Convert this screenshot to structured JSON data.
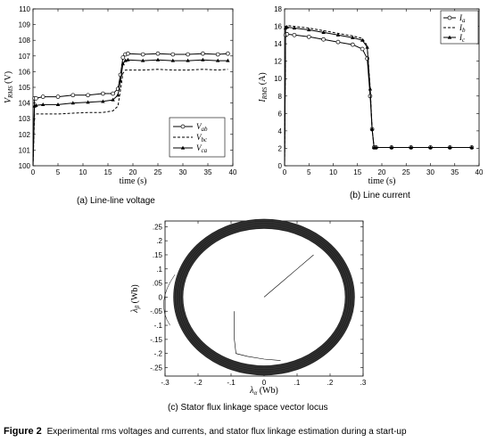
{
  "figure_caption": {
    "label": "Figure 2",
    "text": "Experimental rms voltages and currents, and stator flux linkage estimation during a start-up"
  },
  "chart_data": [
    {
      "id": "a",
      "type": "line",
      "caption": "(a) Line-line voltage",
      "xlabel": "time (s)",
      "ylabel": "V_RMS (V)",
      "xlim": [
        0,
        40
      ],
      "ylim": [
        100,
        110
      ],
      "xticks": [
        0,
        5,
        10,
        15,
        20,
        25,
        30,
        35,
        40
      ],
      "yticks": [
        100,
        101,
        102,
        103,
        104,
        105,
        106,
        107,
        108,
        109,
        110
      ],
      "grid": false,
      "legend_position": "bottom-right",
      "series": [
        {
          "name": "V_ab",
          "name_main": "V",
          "name_sub": "ab",
          "style": "circle-marker",
          "x": [
            0,
            0.3,
            0.6,
            2,
            5,
            8,
            11,
            14,
            16,
            17,
            17.5,
            18,
            18.5,
            19,
            22,
            25,
            28,
            31,
            34,
            37,
            39
          ],
          "y": [
            100,
            104.3,
            104.3,
            104.4,
            104.4,
            104.5,
            104.5,
            104.6,
            104.6,
            104.9,
            105.8,
            106.9,
            107.1,
            107.15,
            107.1,
            107.15,
            107.1,
            107.1,
            107.15,
            107.1,
            107.15
          ]
        },
        {
          "name": "V_bc",
          "name_main": "V",
          "name_sub": "bc",
          "style": "dashed",
          "x": [
            0,
            0.3,
            0.6,
            2,
            5,
            8,
            11,
            14,
            16,
            17,
            17.5,
            18,
            18.5,
            19,
            22,
            25,
            28,
            31,
            34,
            37,
            39
          ],
          "y": [
            100,
            103.3,
            103.3,
            103.3,
            103.3,
            103.35,
            103.4,
            103.4,
            103.5,
            103.8,
            104.8,
            105.9,
            106.1,
            106.1,
            106.1,
            106.15,
            106.1,
            106.1,
            106.15,
            106.1,
            106.15
          ]
        },
        {
          "name": "V_ca",
          "name_main": "V",
          "name_sub": "ca",
          "style": "triangle-marker",
          "x": [
            0,
            0.3,
            0.6,
            2,
            5,
            8,
            11,
            14,
            16,
            17,
            17.5,
            18,
            18.5,
            19,
            22,
            25,
            28,
            31,
            34,
            37,
            39
          ],
          "y": [
            100,
            103.8,
            103.85,
            103.9,
            103.9,
            104.0,
            104.05,
            104.1,
            104.2,
            104.5,
            105.4,
            106.5,
            106.7,
            106.75,
            106.7,
            106.75,
            106.7,
            106.7,
            106.75,
            106.7,
            106.7
          ]
        }
      ]
    },
    {
      "id": "b",
      "type": "line",
      "caption": "(b) Line current",
      "xlabel": "time (s)",
      "ylabel": "I_RMS (A)",
      "xlim": [
        0,
        40
      ],
      "ylim": [
        0,
        18
      ],
      "xticks": [
        0,
        5,
        10,
        15,
        20,
        25,
        30,
        35,
        40
      ],
      "yticks": [
        0,
        2,
        4,
        6,
        8,
        10,
        12,
        14,
        16,
        18
      ],
      "grid": false,
      "legend_position": "top-right",
      "series": [
        {
          "name": "I_a",
          "name_main": "I",
          "name_sub": "a",
          "style": "circle-marker",
          "x": [
            0,
            0.2,
            0.5,
            2,
            5,
            8,
            11,
            14,
            16,
            17,
            17.6,
            18,
            18.4,
            18.8,
            22,
            26,
            30,
            34,
            38.5
          ],
          "y": [
            0,
            15.0,
            15.1,
            15.0,
            14.8,
            14.5,
            14.2,
            13.9,
            13.4,
            12.3,
            8.0,
            4.2,
            2.1,
            2.1,
            2.1,
            2.1,
            2.1,
            2.1,
            2.1
          ]
        },
        {
          "name": "I_b",
          "name_main": "I",
          "name_sub": "b",
          "style": "dashed",
          "x": [
            0,
            0.2,
            0.5,
            2,
            5,
            8,
            11,
            14,
            16,
            17,
            17.6,
            18,
            18.4,
            18.8,
            22,
            26,
            30,
            34,
            38.5
          ],
          "y": [
            0,
            16.0,
            16.1,
            16.0,
            15.8,
            15.5,
            15.2,
            14.9,
            14.6,
            13.8,
            9.0,
            4.2,
            2.1,
            2.1,
            2.1,
            2.1,
            2.1,
            2.1,
            2.1
          ]
        },
        {
          "name": "I_c",
          "name_main": "I",
          "name_sub": "c",
          "style": "triangle-marker",
          "x": [
            0,
            0.2,
            0.5,
            2,
            5,
            8,
            11,
            14,
            16,
            17,
            17.6,
            18,
            18.4,
            18.8,
            22,
            26,
            30,
            34,
            38.5
          ],
          "y": [
            0,
            15.8,
            15.9,
            15.8,
            15.6,
            15.3,
            15.0,
            14.7,
            14.4,
            13.6,
            8.8,
            4.2,
            2.1,
            2.1,
            2.1,
            2.1,
            2.1,
            2.1,
            2.1
          ]
        }
      ]
    },
    {
      "id": "c",
      "type": "line",
      "caption": "(c) Stator flux linkage space vector locus",
      "xlabel": "λ_α (Wb)",
      "ylabel": "λ_β (Wb)",
      "xlim": [
        -0.3,
        0.3
      ],
      "ylim": [
        -0.28,
        0.27
      ],
      "xticks": [
        -0.3,
        -0.2,
        -0.1,
        0,
        0.1,
        0.2,
        0.3
      ],
      "yticks": [
        -0.25,
        -0.2,
        -0.15,
        -0.1,
        -0.05,
        0,
        0.05,
        0.1,
        0.15,
        0.2,
        0.25
      ],
      "grid": false,
      "steady_state_radius": [
        0.245,
        0.275
      ],
      "startup_trajectory": {
        "x": [
          0,
          0.05,
          0.1,
          0.15
        ],
        "y": [
          0,
          0.05,
          0.1,
          0.15
        ]
      },
      "startup_trajectory_2": {
        "x": [
          -0.09,
          -0.09,
          -0.085,
          -0.05,
          0.0,
          0.05
        ],
        "y": [
          -0.05,
          -0.15,
          -0.2,
          -0.21,
          -0.22,
          -0.225
        ]
      }
    }
  ]
}
